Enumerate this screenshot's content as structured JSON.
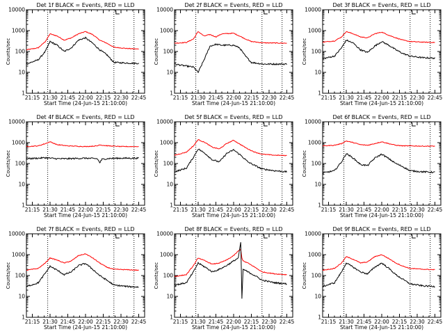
{
  "chart_data": [
    {
      "type": "line",
      "title": "Det 1f BLACK = Events, RED = LLD",
      "xlabel": "Start Time (24-Jun-15 21:10:00)",
      "ylabel": "Counts/sec",
      "ylog": true,
      "ylim": [
        1,
        10000
      ],
      "xlim": [
        "21:10",
        "22:50"
      ],
      "x_ticks": [
        "21:15",
        "21:30",
        "21:45",
        "22:00",
        "22:15",
        "22:30",
        "22:45"
      ],
      "y_ticks": [
        "1",
        "10",
        "100",
        "1000",
        "10000"
      ],
      "marker_times": [
        "21:28",
        "22:24",
        "22:41"
      ],
      "x": [
        "21:10",
        "21:20",
        "21:26",
        "21:30",
        "21:36",
        "21:42",
        "21:48",
        "21:54",
        "22:00",
        "22:06",
        "22:12",
        "22:18",
        "22:24",
        "22:35",
        "22:45"
      ],
      "series": [
        {
          "color": "#ff0000",
          "values": [
            120,
            150,
            300,
            700,
            550,
            350,
            450,
            700,
            900,
            650,
            350,
            250,
            160,
            140,
            130
          ]
        },
        {
          "color": "#000000",
          "values": [
            25,
            40,
            100,
            300,
            200,
            100,
            150,
            350,
            450,
            250,
            120,
            70,
            30,
            28,
            27
          ]
        }
      ]
    },
    {
      "type": "line",
      "title": "Det 2f BLACK = Events, RED = LLD",
      "xlabel": "Start Time (24-Jun-15 21:10:00)",
      "ylabel": "Counts/sec",
      "ylog": true,
      "ylim": [
        1,
        10000
      ],
      "xlim": [
        "21:10",
        "22:50"
      ],
      "x_ticks": [
        "21:15",
        "21:30",
        "21:45",
        "22:00",
        "22:15",
        "22:30",
        "22:45"
      ],
      "y_ticks": [
        "1",
        "10",
        "100",
        "1000",
        "10000"
      ],
      "marker_times": [
        "21:28",
        "22:24",
        "22:41"
      ],
      "x": [
        "21:10",
        "21:20",
        "21:26",
        "21:30",
        "21:35",
        "21:40",
        "21:45",
        "21:50",
        "22:00",
        "22:05",
        "22:10",
        "22:15",
        "22:25",
        "22:45"
      ],
      "series": [
        {
          "color": "#ff0000",
          "values": [
            250,
            270,
            400,
            900,
            550,
            650,
            500,
            700,
            750,
            550,
            400,
            300,
            260,
            250
          ]
        },
        {
          "color": "#000000",
          "values": [
            25,
            20,
            18,
            10,
            40,
            180,
            220,
            200,
            200,
            150,
            60,
            30,
            25,
            25
          ]
        }
      ]
    },
    {
      "type": "line",
      "title": "Det 3f BLACK = Events, RED = LLD",
      "xlabel": "Start Time (24-Jun-15 21:10:00)",
      "ylabel": "Counts/sec",
      "ylog": true,
      "ylim": [
        1,
        10000
      ],
      "xlim": [
        "21:10",
        "22:50"
      ],
      "x_ticks": [
        "21:15",
        "21:30",
        "21:45",
        "22:00",
        "22:15",
        "22:30",
        "22:45"
      ],
      "y_ticks": [
        "1",
        "10",
        "100",
        "1000",
        "10000"
      ],
      "marker_times": [
        "21:28",
        "22:24",
        "22:41"
      ],
      "x": [
        "21:10",
        "21:20",
        "21:26",
        "21:30",
        "21:36",
        "21:42",
        "21:48",
        "21:54",
        "22:00",
        "22:06",
        "22:12",
        "22:18",
        "22:24",
        "22:35",
        "22:45"
      ],
      "series": [
        {
          "color": "#ff0000",
          "values": [
            280,
            320,
            500,
            900,
            700,
            500,
            450,
            700,
            850,
            600,
            450,
            350,
            300,
            280,
            270
          ]
        },
        {
          "color": "#000000",
          "values": [
            45,
            60,
            150,
            350,
            250,
            120,
            90,
            180,
            300,
            200,
            120,
            80,
            60,
            50,
            48
          ]
        }
      ]
    },
    {
      "type": "line",
      "title": "Det 4f BLACK = Events, RED = LLD",
      "xlabel": "Start Time (24-Jun-15 21:10:00)",
      "ylabel": "Counts/sec",
      "ylog": true,
      "ylim": [
        1,
        10000
      ],
      "xlim": [
        "21:10",
        "22:50"
      ],
      "x_ticks": [
        "21:15",
        "21:30",
        "21:45",
        "22:00",
        "22:15",
        "22:30",
        "22:45"
      ],
      "y_ticks": [
        "1",
        "10",
        "100",
        "1000",
        "10000"
      ],
      "marker_times": [
        "21:28",
        "22:24",
        "22:41"
      ],
      "x": [
        "21:10",
        "21:20",
        "21:26",
        "21:30",
        "21:36",
        "21:45",
        "22:00",
        "22:10",
        "22:12",
        "22:14",
        "22:20",
        "22:30",
        "22:45"
      ],
      "series": [
        {
          "color": "#ff0000",
          "values": [
            650,
            700,
            900,
            1100,
            800,
            700,
            650,
            700,
            800,
            750,
            700,
            650,
            650
          ]
        },
        {
          "color": "#000000",
          "values": [
            170,
            180,
            190,
            180,
            170,
            170,
            180,
            170,
            110,
            160,
            175,
            180,
            180
          ]
        }
      ]
    },
    {
      "type": "line",
      "title": "Det 5f BLACK = Events, RED = LLD",
      "xlabel": "Start Time (24-Jun-15 21:10:00)",
      "ylabel": "Counts/sec",
      "ylog": true,
      "ylim": [
        1,
        10000
      ],
      "xlim": [
        "21:10",
        "22:50"
      ],
      "x_ticks": [
        "21:15",
        "21:30",
        "21:45",
        "22:00",
        "22:15",
        "22:30",
        "22:45"
      ],
      "y_ticks": [
        "1",
        "10",
        "100",
        "1000",
        "10000"
      ],
      "marker_times": [
        "21:28",
        "22:24",
        "22:41"
      ],
      "x": [
        "21:10",
        "21:20",
        "21:26",
        "21:30",
        "21:36",
        "21:42",
        "21:48",
        "21:54",
        "22:00",
        "22:06",
        "22:12",
        "22:18",
        "22:24",
        "22:35",
        "22:45"
      ],
      "series": [
        {
          "color": "#ff0000",
          "values": [
            250,
            350,
            700,
            1400,
            1000,
            600,
            500,
            900,
            1300,
            800,
            500,
            350,
            280,
            250,
            240
          ]
        },
        {
          "color": "#000000",
          "values": [
            40,
            60,
            200,
            500,
            300,
            150,
            120,
            300,
            450,
            250,
            120,
            80,
            55,
            45,
            40
          ]
        }
      ]
    },
    {
      "type": "line",
      "title": "Det 6f BLACK = Events, RED = LLD",
      "xlabel": "Start Time (24-Jun-15 21:10:00)",
      "ylabel": "Counts/sec",
      "ylog": true,
      "ylim": [
        1,
        10000
      ],
      "xlim": [
        "21:10",
        "22:50"
      ],
      "x_ticks": [
        "21:15",
        "21:30",
        "21:45",
        "22:00",
        "22:15",
        "22:30",
        "22:45"
      ],
      "y_ticks": [
        "1",
        "10",
        "100",
        "1000",
        "10000"
      ],
      "marker_times": [
        "21:28",
        "22:24",
        "22:41"
      ],
      "x": [
        "21:10",
        "21:20",
        "21:26",
        "21:30",
        "21:36",
        "21:42",
        "21:48",
        "21:54",
        "22:00",
        "22:06",
        "22:12",
        "22:18",
        "22:24",
        "22:35",
        "22:45"
      ],
      "series": [
        {
          "color": "#ff0000",
          "values": [
            700,
            750,
            900,
            1200,
            1000,
            800,
            750,
            900,
            1100,
            900,
            750,
            700,
            700,
            680,
            680
          ]
        },
        {
          "color": "#000000",
          "values": [
            35,
            45,
            120,
            300,
            180,
            90,
            80,
            180,
            280,
            170,
            100,
            70,
            45,
            40,
            38
          ]
        }
      ]
    },
    {
      "type": "line",
      "title": "Det 7f BLACK = Events, RED = LLD",
      "xlabel": "Start Time (24-Jun-15 21:10:00)",
      "ylabel": "Counts/sec",
      "ylog": true,
      "ylim": [
        1,
        10000
      ],
      "xlim": [
        "21:10",
        "22:50"
      ],
      "x_ticks": [
        "21:15",
        "21:30",
        "21:45",
        "22:00",
        "22:15",
        "22:30",
        "22:45"
      ],
      "y_ticks": [
        "1",
        "10",
        "100",
        "1000",
        "10000"
      ],
      "marker_times": [
        "21:28",
        "22:24",
        "22:41"
      ],
      "x": [
        "21:10",
        "21:20",
        "21:26",
        "21:30",
        "21:36",
        "21:42",
        "21:48",
        "21:54",
        "22:00",
        "22:06",
        "22:12",
        "22:18",
        "22:24",
        "22:35",
        "22:45"
      ],
      "series": [
        {
          "color": "#ff0000",
          "values": [
            180,
            220,
            400,
            700,
            550,
            400,
            500,
            900,
            1100,
            700,
            400,
            250,
            200,
            190,
            180
          ]
        },
        {
          "color": "#000000",
          "values": [
            30,
            45,
            130,
            280,
            180,
            110,
            150,
            300,
            380,
            200,
            100,
            60,
            35,
            30,
            28
          ]
        }
      ]
    },
    {
      "type": "line",
      "title": "Det 8f BLACK = Events, RED = LLD",
      "xlabel": "Start Time (24-Jun-15 21:10:00)",
      "ylabel": "Counts/sec",
      "ylog": true,
      "ylim": [
        1,
        10000
      ],
      "xlim": [
        "21:10",
        "22:50"
      ],
      "x_ticks": [
        "21:15",
        "21:30",
        "21:45",
        "22:00",
        "22:15",
        "22:30",
        "22:45"
      ],
      "y_ticks": [
        "1",
        "10",
        "100",
        "1000",
        "10000"
      ],
      "marker_times": [
        "21:28",
        "22:24",
        "22:41"
      ],
      "x": [
        "21:10",
        "21:20",
        "21:26",
        "21:30",
        "21:36",
        "21:42",
        "21:48",
        "21:54",
        "22:00",
        "22:04",
        "22:06",
        "22:07",
        "22:08",
        "22:12",
        "22:18",
        "22:24",
        "22:35",
        "22:45"
      ],
      "series": [
        {
          "color": "#ff0000",
          "values": [
            90,
            110,
            300,
            700,
            500,
            350,
            400,
            550,
            900,
            1500,
            1800,
            700,
            500,
            400,
            250,
            150,
            120,
            110
          ]
        },
        {
          "color": "#000000",
          "values": [
            35,
            45,
            150,
            400,
            250,
            150,
            200,
            300,
            500,
            700,
            4000,
            8,
            200,
            150,
            100,
            60,
            45,
            40
          ]
        }
      ]
    },
    {
      "type": "line",
      "title": "Det 9f BLACK = Events, RED = LLD",
      "xlabel": "Start Time (24-Jun-15 21:10:00)",
      "ylabel": "Counts/sec",
      "ylog": true,
      "ylim": [
        1,
        10000
      ],
      "xlim": [
        "21:10",
        "22:50"
      ],
      "x_ticks": [
        "21:15",
        "21:30",
        "21:45",
        "22:00",
        "22:15",
        "22:30",
        "22:45"
      ],
      "y_ticks": [
        "1",
        "10",
        "100",
        "1000",
        "10000"
      ],
      "marker_times": [
        "21:28",
        "22:24",
        "22:41"
      ],
      "x": [
        "21:10",
        "21:20",
        "21:26",
        "21:30",
        "21:36",
        "21:42",
        "21:48",
        "21:54",
        "22:00",
        "22:06",
        "22:12",
        "22:18",
        "22:24",
        "22:35",
        "22:45"
      ],
      "series": [
        {
          "color": "#ff0000",
          "values": [
            180,
            220,
            400,
            800,
            600,
            400,
            450,
            800,
            1000,
            650,
            400,
            280,
            220,
            200,
            190
          ]
        },
        {
          "color": "#000000",
          "values": [
            30,
            45,
            150,
            400,
            250,
            150,
            120,
            250,
            400,
            220,
            110,
            65,
            40,
            32,
            30
          ]
        }
      ]
    }
  ]
}
